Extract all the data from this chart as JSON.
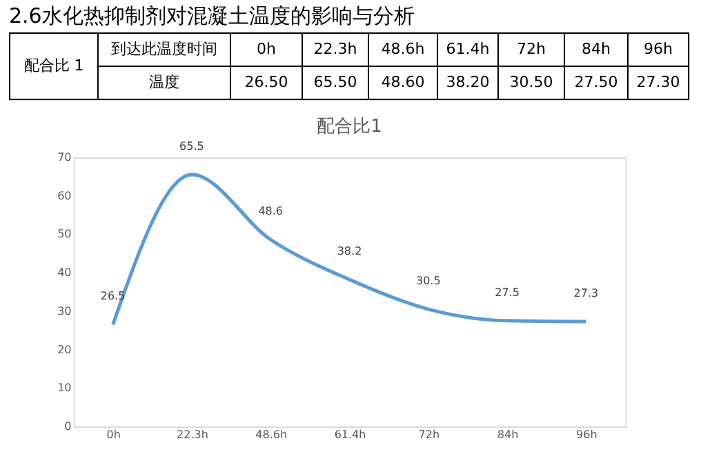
{
  "chart_data": {
    "type": "line",
    "title": "配合比1",
    "categories": [
      "0h",
      "22.3h",
      "48.6h",
      "61.4h",
      "72h",
      "84h",
      "96h"
    ],
    "series": [
      {
        "color": "#5b9bd5",
        "values": [
          26.5,
          65.5,
          48.6,
          38.2,
          30.5,
          27.5,
          27.3
        ]
      }
    ],
    "ylim": [
      0,
      70
    ],
    "yticks": [
      0,
      10,
      20,
      30,
      40,
      50,
      60,
      70
    ],
    "grid": false,
    "data_labels": true,
    "marker": "none",
    "line_style": "solid",
    "annotations": [
      "2.6水化热抑制剂对混凝土温度的影响与分析",
      "配合比 1",
      "到达此温度时间",
      "0h",
      "22.3h",
      "48.6h",
      "61.4h",
      "72h",
      "84h",
      "96h",
      "温度",
      "26.50",
      "65.50",
      "48.60",
      "38.20",
      "30.50",
      "27.50",
      "27.30"
    ]
  }
}
